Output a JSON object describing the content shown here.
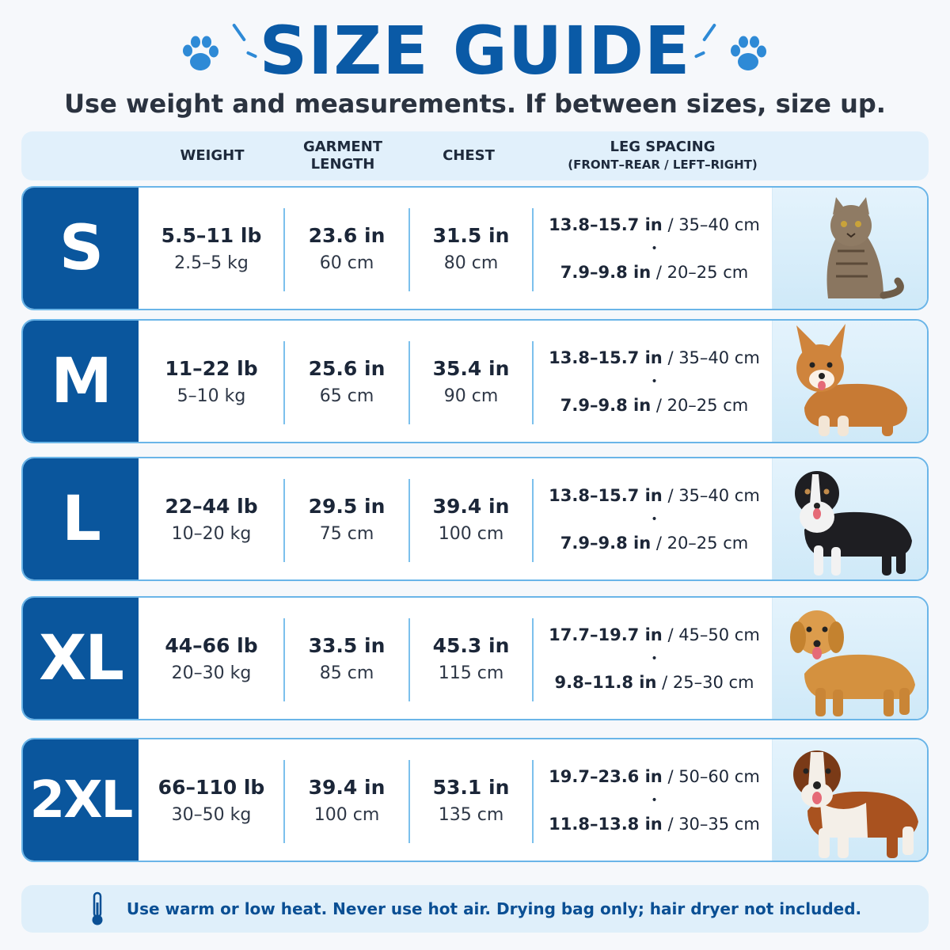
{
  "title": "SIZE GUIDE",
  "subtitle": "Use weight and measurements. If between sizes, size up.",
  "headers": {
    "weight": "WEIGHT",
    "garment_line1": "GARMENT",
    "garment_line2": "LENGTH",
    "chest": "CHEST",
    "leg_line1": "LEG SPACING",
    "leg_line2": "(FRONT–REAR / LEFT–RIGHT)"
  },
  "rows": [
    {
      "size": "S",
      "weight_lb": "5.5–11 lb",
      "weight_kg": "2.5–5 kg",
      "length_in": "23.6 in",
      "length_cm": "60 cm",
      "chest_in": "31.5 in",
      "chest_cm": "80 cm",
      "fr_in": "13.8–15.7 in",
      "fr_cm": " / 35–40 cm",
      "lr_in": "7.9–9.8 in",
      "lr_cm": " / 20–25 cm",
      "pet": "cat-photo"
    },
    {
      "size": "M",
      "weight_lb": "11–22 lb",
      "weight_kg": "5–10 kg",
      "length_in": "25.6 in",
      "length_cm": "65 cm",
      "chest_in": "35.4 in",
      "chest_cm": "90 cm",
      "fr_in": "13.8–15.7 in",
      "fr_cm": " / 35–40 cm",
      "lr_in": "7.9–9.8 in",
      "lr_cm": " / 20–25 cm",
      "pet": "corgi-photo"
    },
    {
      "size": "L",
      "weight_lb": "22–44 lb",
      "weight_kg": "10–20 kg",
      "length_in": "29.5 in",
      "length_cm": "75 cm",
      "chest_in": "39.4 in",
      "chest_cm": "100 cm",
      "fr_in": "13.8–15.7 in",
      "fr_cm": " / 35–40 cm",
      "lr_in": "7.9–9.8 in",
      "lr_cm": " / 20–25 cm",
      "pet": "collie-photo"
    },
    {
      "size": "XL",
      "weight_lb": "44–66 lb",
      "weight_kg": "20–30 kg",
      "length_in": "33.5 in",
      "length_cm": "85 cm",
      "chest_in": "45.3 in",
      "chest_cm": "115 cm",
      "fr_in": "17.7–19.7 in",
      "fr_cm": " / 45–50 cm",
      "lr_in": "9.8–11.8 in",
      "lr_cm": " / 25–30 cm",
      "pet": "golden-retriever-photo"
    },
    {
      "size": "2XL",
      "weight_lb": "66–110 lb",
      "weight_kg": "30–50 kg",
      "length_in": "39.4 in",
      "length_cm": "100 cm",
      "chest_in": "53.1 in",
      "chest_cm": "135 cm",
      "fr_in": "19.7–23.6 in",
      "fr_cm": " / 50–60 cm",
      "lr_in": "11.8–13.8 in",
      "lr_cm": " / 30–35 cm",
      "pet": "saint-bernard-photo"
    }
  ],
  "bullet": "•",
  "footer": "Use warm or low heat. Never use hot air. Drying bag only; hair dryer not included.",
  "colors": {
    "brand_blue": "#0a569d",
    "accent": "#2e8ad6",
    "light": "#e1f0fb"
  }
}
